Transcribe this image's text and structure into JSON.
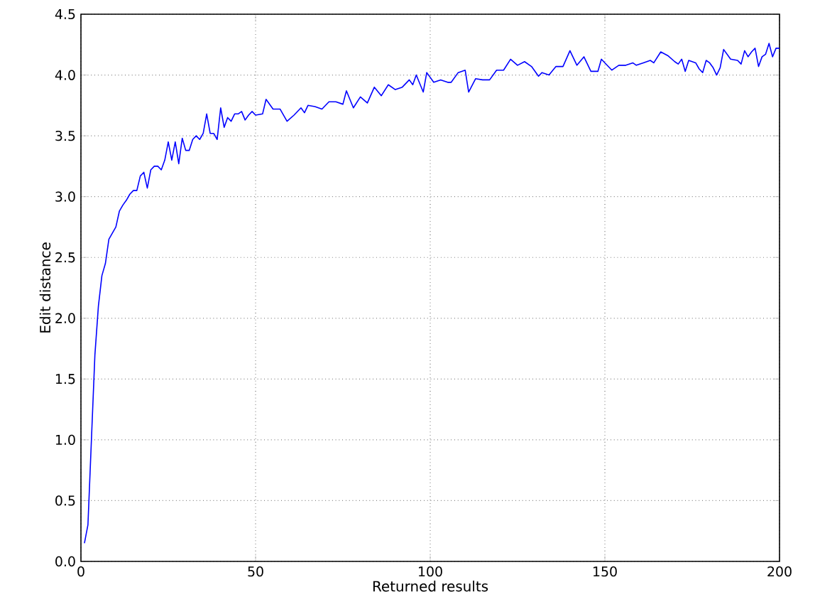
{
  "chart_data": {
    "type": "line",
    "xlabel": "Returned results",
    "ylabel": "Edit distance",
    "color": "#0000ff",
    "grid": true,
    "xlim": [
      0,
      200
    ],
    "xticks": [
      0,
      50,
      100,
      150,
      200
    ],
    "ylim": [
      0,
      4.5
    ],
    "yticks": [
      {
        "value": 0,
        "label": "0.0"
      },
      0.5,
      {
        "value": 1,
        "label": "1.0"
      },
      1.5,
      {
        "value": 2,
        "label": "2.0"
      },
      2.5,
      {
        "value": 3,
        "label": "3.0"
      },
      3.5,
      {
        "value": 4,
        "label": "4.0"
      },
      4.5
    ],
    "x": [
      1,
      2,
      3,
      4,
      5,
      6,
      7,
      8,
      9,
      10,
      11,
      12,
      13,
      14,
      15,
      16,
      17,
      18,
      19,
      20,
      21,
      22,
      23,
      24,
      25,
      26,
      27,
      28,
      29,
      30,
      31,
      32,
      33,
      34,
      35,
      36,
      37,
      38,
      39,
      40,
      41,
      42,
      43,
      44,
      45,
      46,
      47,
      48,
      49,
      50,
      52,
      53,
      55,
      57,
      59,
      61,
      63,
      64,
      65,
      67,
      69,
      71,
      73,
      75,
      76,
      78,
      80,
      82,
      84,
      86,
      88,
      90,
      92,
      94,
      95,
      96,
      98,
      99,
      101,
      103,
      105,
      106,
      108,
      110,
      111,
      113,
      115,
      117,
      119,
      121,
      123,
      125,
      127,
      129,
      131,
      132,
      134,
      136,
      138,
      140,
      142,
      144,
      146,
      148,
      149,
      150,
      152,
      154,
      156,
      158,
      159,
      161,
      163,
      164,
      166,
      168,
      170,
      171,
      172,
      173,
      174,
      176,
      177,
      178,
      179,
      180,
      181,
      182,
      183,
      184,
      186,
      188,
      189,
      190,
      191,
      192,
      193,
      194,
      195,
      196,
      197,
      198,
      199,
      200
    ],
    "values": [
      0.15,
      0.3,
      1.0,
      1.7,
      2.1,
      2.35,
      2.45,
      2.65,
      2.7,
      2.75,
      2.88,
      2.93,
      2.97,
      3.02,
      3.05,
      3.05,
      3.17,
      3.2,
      3.07,
      3.22,
      3.25,
      3.25,
      3.22,
      3.3,
      3.45,
      3.3,
      3.45,
      3.27,
      3.48,
      3.38,
      3.38,
      3.47,
      3.5,
      3.47,
      3.52,
      3.68,
      3.52,
      3.52,
      3.47,
      3.73,
      3.57,
      3.65,
      3.62,
      3.68,
      3.68,
      3.7,
      3.63,
      3.67,
      3.7,
      3.67,
      3.68,
      3.8,
      3.72,
      3.72,
      3.62,
      3.67,
      3.73,
      3.69,
      3.75,
      3.74,
      3.72,
      3.78,
      3.78,
      3.76,
      3.87,
      3.73,
      3.82,
      3.77,
      3.9,
      3.83,
      3.92,
      3.88,
      3.9,
      3.96,
      3.92,
      4.0,
      3.86,
      4.02,
      3.94,
      3.96,
      3.94,
      3.94,
      4.02,
      4.04,
      3.86,
      3.97,
      3.96,
      3.96,
      4.04,
      4.04,
      4.13,
      4.08,
      4.11,
      4.07,
      3.99,
      4.02,
      4.0,
      4.07,
      4.07,
      4.2,
      4.08,
      4.15,
      4.03,
      4.03,
      4.13,
      4.1,
      4.04,
      4.08,
      4.08,
      4.1,
      4.08,
      4.1,
      4.12,
      4.1,
      4.19,
      4.16,
      4.11,
      4.09,
      4.13,
      4.03,
      4.12,
      4.1,
      4.05,
      4.02,
      4.12,
      4.1,
      4.06,
      4.0,
      4.06,
      4.21,
      4.13,
      4.12,
      4.09,
      4.2,
      4.15,
      4.19,
      4.22,
      4.07,
      4.15,
      4.17,
      4.26,
      4.15,
      4.22,
      4.22
    ]
  }
}
